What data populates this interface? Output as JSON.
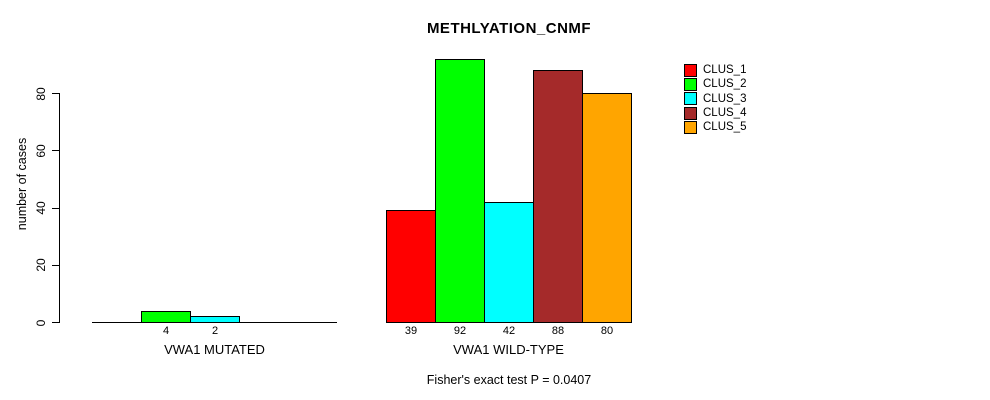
{
  "title": "METHLYATION_CNMF",
  "y_axis_label": "number of cases",
  "footnote": "Fisher's exact test P = 0.0407",
  "legend": [
    {
      "label": "CLUS_1",
      "color": "#FF0000"
    },
    {
      "label": "CLUS_2",
      "color": "#00FF00"
    },
    {
      "label": "CLUS_3",
      "color": "#00FFFF"
    },
    {
      "label": "CLUS_4",
      "color": "#A52A2A"
    },
    {
      "label": "CLUS_5",
      "color": "#FFA500"
    }
  ],
  "chart_data": {
    "type": "bar",
    "title": "METHLYATION_CNMF",
    "xlabel": "",
    "ylabel": "number of cases",
    "ylim": [
      0,
      80
    ],
    "yticks": [
      0,
      20,
      40,
      60,
      80
    ],
    "grid": false,
    "legend_position": "top-right",
    "bar_border_color": "#000000",
    "categories": [
      "VWA1 MUTATED",
      "VWA1 WILD-TYPE"
    ],
    "series": [
      {
        "name": "CLUS_1",
        "color": "#FF0000",
        "values": [
          0,
          39
        ]
      },
      {
        "name": "CLUS_2",
        "color": "#00FF00",
        "values": [
          4,
          92
        ]
      },
      {
        "name": "CLUS_3",
        "color": "#00FFFF",
        "values": [
          2,
          42
        ]
      },
      {
        "name": "CLUS_4",
        "color": "#A52A2A",
        "values": [
          0,
          88
        ]
      },
      {
        "name": "CLUS_5",
        "color": "#FFA500",
        "values": [
          0,
          80
        ]
      }
    ],
    "bar_value_labels_nonzero_only": true,
    "annotation": "Fisher's exact test P = 0.0407"
  }
}
